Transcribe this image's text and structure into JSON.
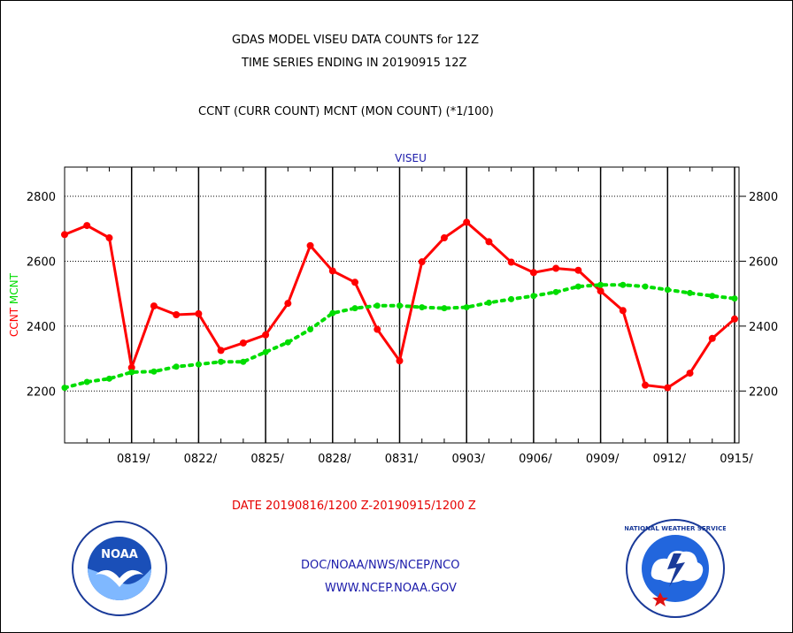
{
  "header": {
    "title_line1": "GDAS MODEL VISEU DATA COUNTS for 12Z",
    "title_line2": "TIME SERIES ENDING IN 20190915 12Z",
    "subtitle": "CCNT (CURR COUNT) MCNT (MON COUNT) (*1/100)"
  },
  "footer": {
    "date_range": "DATE 20190816/1200 Z-20190915/1200 Z",
    "org_line": "DOC/NOAA/NWS/NCEP/NCO",
    "url_line": "WWW.NCEP.NOAA.GOV"
  },
  "logos": {
    "noaa_text": "NOAA",
    "nws_text": "NATIONAL WEATHER SERVICE"
  },
  "colors": {
    "ccnt": "#ff0000",
    "mcnt": "#00dd00",
    "grid": "#000000",
    "label_blue": "#1a1aaa"
  },
  "chart_data": {
    "type": "line",
    "title": "VISEU",
    "ylabel_ccnt": "CCNT",
    "ylabel_mcnt": "MCNT",
    "ylim": [
      2040,
      2890
    ],
    "yticks": [
      "2200",
      "2400",
      "2600",
      "2800"
    ],
    "ytick_values": [
      2200,
      2400,
      2600,
      2800
    ],
    "xlim": [
      0,
      30
    ],
    "xtick_labels": [
      "0819/",
      "0822/",
      "0825/",
      "0828/",
      "0831/",
      "0903/",
      "0906/",
      "0909/",
      "0912/",
      "0915/"
    ],
    "xtick_positions": [
      3,
      6,
      9,
      12,
      15,
      18,
      21,
      24,
      27,
      30
    ],
    "grid": true,
    "series": [
      {
        "name": "CCNT",
        "color": "#ff0000",
        "x": [
          0,
          1,
          2,
          3,
          4,
          5,
          6,
          7,
          8,
          9,
          10,
          11,
          12,
          13,
          14,
          15,
          16,
          17,
          18,
          19,
          20,
          21,
          22,
          23,
          24,
          25,
          26,
          27,
          28,
          29,
          30
        ],
        "values": [
          2682,
          2710,
          2672,
          2272,
          2462,
          2435,
          2438,
          2325,
          2348,
          2373,
          2470,
          2648,
          2570,
          2535,
          2390,
          2293,
          2598,
          2672,
          2720,
          2660,
          2597,
          2565,
          2578,
          2572,
          2508,
          2448,
          2218,
          2210,
          2255,
          2362,
          2422
        ]
      },
      {
        "name": "MCNT",
        "color": "#00dd00",
        "x": [
          0,
          1,
          2,
          3,
          4,
          5,
          6,
          7,
          8,
          9,
          10,
          11,
          12,
          13,
          14,
          15,
          16,
          17,
          18,
          19,
          20,
          21,
          22,
          23,
          24,
          25,
          26,
          27,
          28,
          29,
          30
        ],
        "values": [
          2210,
          2228,
          2238,
          2258,
          2260,
          2275,
          2282,
          2290,
          2290,
          2320,
          2350,
          2390,
          2440,
          2455,
          2463,
          2463,
          2458,
          2455,
          2458,
          2472,
          2483,
          2493,
          2505,
          2522,
          2527,
          2527,
          2522,
          2512,
          2502,
          2493,
          2485
        ]
      }
    ]
  }
}
